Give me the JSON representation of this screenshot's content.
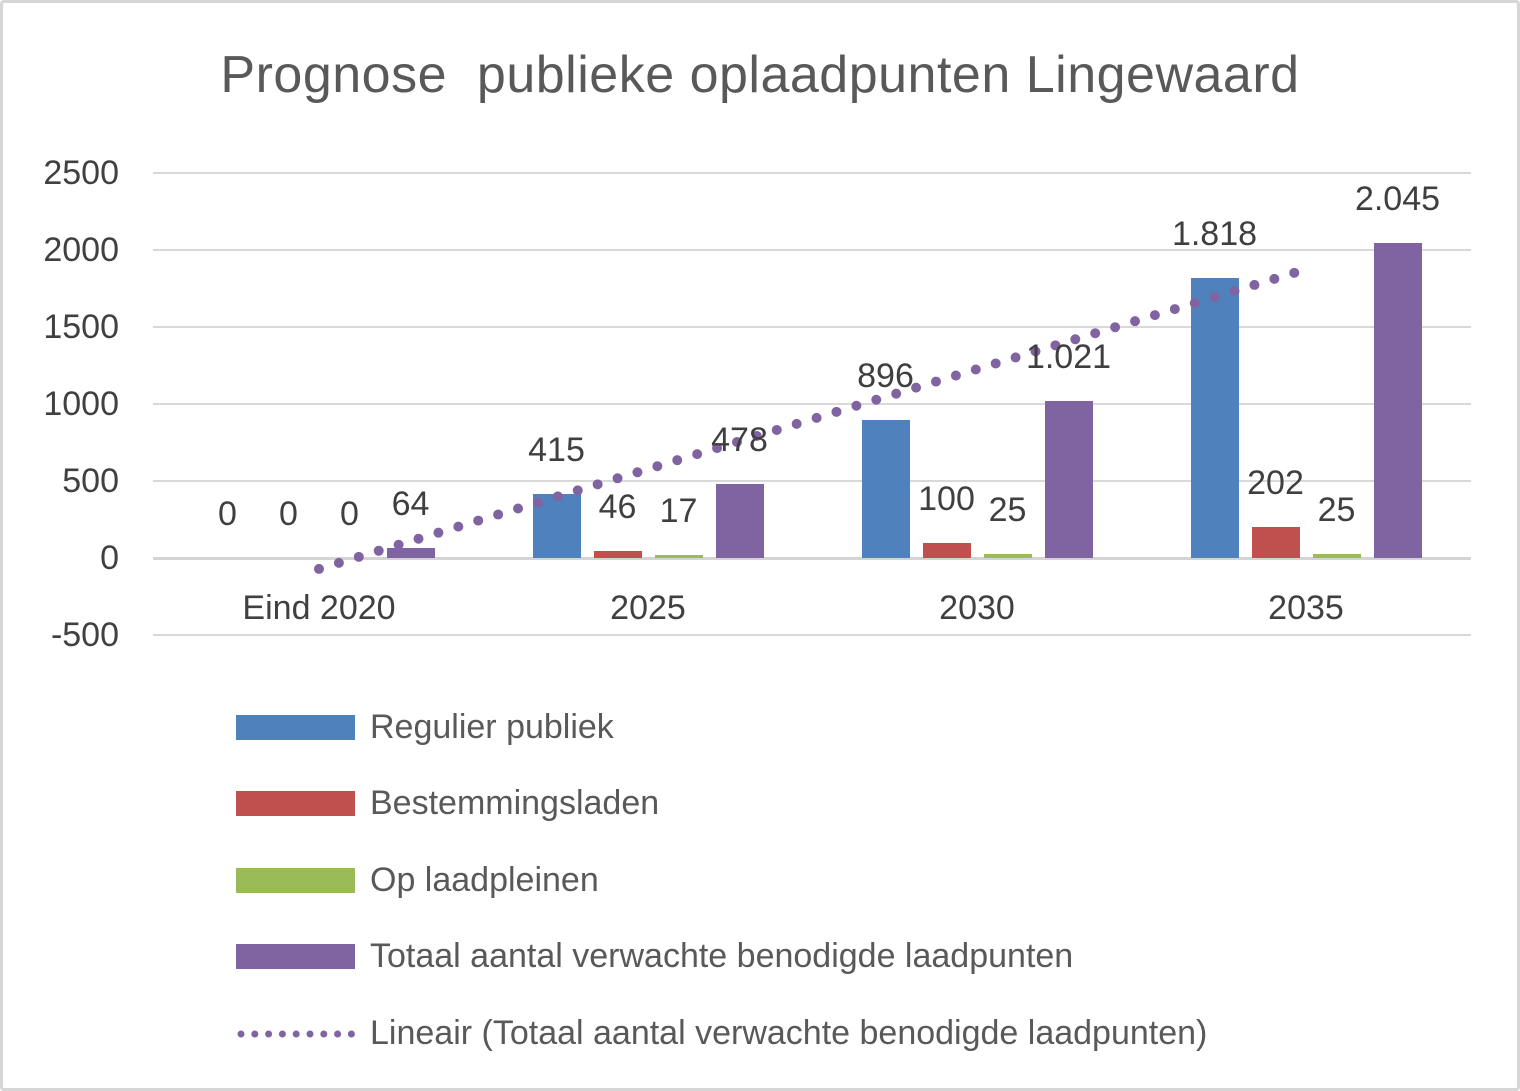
{
  "chart_data": {
    "type": "bar",
    "title": "Prognose  publieke oplaadpunten Lingewaard",
    "categories": [
      "Eind 2020",
      "2025",
      "2030",
      "2035"
    ],
    "series": [
      {
        "name": "Regulier publiek",
        "slug": "regulier-publiek",
        "color": "#4F81BD",
        "values": [
          0,
          415,
          896,
          1818
        ],
        "value_labels": [
          "0",
          "415",
          "896",
          "1.818"
        ]
      },
      {
        "name": "Bestemmingsladen",
        "slug": "bestemmingsladen",
        "color": "#C0504D",
        "values": [
          0,
          46,
          100,
          202
        ],
        "value_labels": [
          "0",
          "46",
          "100",
          "202"
        ]
      },
      {
        "name": "Op laadpleinen",
        "slug": "op-laadpleinen",
        "color": "#9BBB59",
        "values": [
          0,
          17,
          25,
          25
        ],
        "value_labels": [
          "0",
          "17",
          "25",
          "25"
        ]
      },
      {
        "name": "Totaal aantal verwachte benodigde laadpunten",
        "slug": "totaal-aantal",
        "color": "#8064A2",
        "values": [
          64,
          478,
          1021,
          2045
        ],
        "value_labels": [
          "64",
          "478",
          "1.021",
          "2.045"
        ]
      }
    ],
    "trendline": {
      "name": "Lineair (Totaal aantal verwachte benodigde laadpunten)",
      "slug": "lineair-totaal",
      "color": "#8064A2",
      "style": "dotted",
      "start_value": -71,
      "end_value": 1875
    },
    "y_axis": {
      "min": -500,
      "max": 2500,
      "step": 500,
      "tick_labels": [
        "2500",
        "2000",
        "1500",
        "1000",
        "500",
        "0",
        "-500"
      ]
    },
    "grid": true,
    "legend_position": "bottom-left",
    "colors": {
      "grid": "#d9d9d9",
      "title_text": "#595959",
      "axis_text": "#404040",
      "data_label_text": "#3f3f3f",
      "frame_border": "#d6d6d6"
    }
  }
}
